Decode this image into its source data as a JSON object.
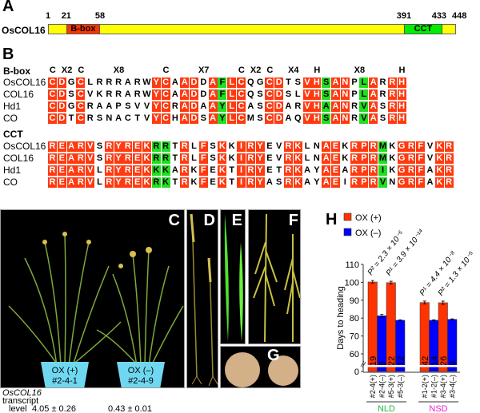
{
  "panel_a": {
    "label": "A",
    "protein": "OsCOL16",
    "length": 448,
    "positions": [
      "1",
      "21",
      "58",
      "391",
      "433",
      "448"
    ],
    "domains": [
      {
        "name": "B-box",
        "start": 21,
        "end": 58,
        "color": "#ff3300"
      },
      {
        "name": "CCT",
        "start": 391,
        "end": 433,
        "color": "#00ee00"
      }
    ],
    "bar_color": "#ffff00"
  },
  "panel_b": {
    "label": "B",
    "bbox": {
      "title": "B-box",
      "header": [
        {
          "text": "C",
          "col": 1
        },
        {
          "text": "X2",
          "col": 2.5
        },
        {
          "text": "C",
          "col": 4
        },
        {
          "text": "X8",
          "col": 8
        },
        {
          "text": "C",
          "col": 13
        },
        {
          "text": "X7",
          "col": 17
        },
        {
          "text": "C",
          "col": 21
        },
        {
          "text": "X2",
          "col": 22.5
        },
        {
          "text": "C",
          "col": 24
        },
        {
          "text": "X4",
          "col": 26.5
        },
        {
          "text": "H",
          "col": 29
        },
        {
          "text": "X8",
          "col": 33.5
        },
        {
          "text": "H",
          "col": 38
        }
      ],
      "pattern": "rrnrnnnnnnnrrnrrnrgrrnnrrnnrrgrrngrnrr",
      "rows": [
        {
          "name": "OsCOL16",
          "seq": "CDGCLRRRARWYCAADDAFLCQGCDTSVHSANPLARRH"
        },
        {
          "name": "COL16",
          "seq": "CDSCVKRRARWYCAADDAFLCQSCDSLVHSANPLARRH"
        },
        {
          "name": "Hd1",
          "seq": "CDGCRAAPSVVYCRADAAYLCASCDARVHAANRVASRH"
        },
        {
          "name": "CO",
          "seq": "CDTCRSNACTVYCHADSAYLCMSCDAQVHSANRVASRH"
        }
      ]
    },
    "cct": {
      "title": "CCT",
      "pattern": "rrrrrnrrrrrggnrnrnrnrrrnnrrnnrrnrrrgnrrrnrr",
      "rows": [
        {
          "name": "OsCOL16",
          "seq": "REARVSRYREKRRTRLFSKKIRYEVRKLNAEKRPRMKGRFVKR"
        },
        {
          "name": "COL16",
          "seq": "REARVSRYREKRRTRLFSKKIRYEVRKLNAEKRPRMKGRFVKR"
        },
        {
          "name": "Hd1",
          "seq": "REARVLRYREKKKARKFEKTIRYETRKAYAEARPRIKGRFAKR"
        },
        {
          "name": "CO",
          "seq": "REARVLRYREKRKTRKFEKTIRYASRKAYAEIRPRVNGRFAKR"
        }
      ]
    }
  },
  "photos": {
    "labels": [
      "C",
      "D",
      "E",
      "F",
      "G"
    ],
    "pots": [
      {
        "line1": "OX (+)",
        "line2": "#2-4-1"
      },
      {
        "line1": "OX (–)",
        "line2": "#2-4-9"
      }
    ],
    "transcript": {
      "gene": "OsCOL16",
      "word1": "transcript",
      "word2": "level",
      "values": [
        "4.05 ± 0.26",
        "0.43 ± 0.01"
      ]
    }
  },
  "chart_data": {
    "type": "bar",
    "panel_label": "H",
    "ylabel": "Days to heading",
    "ylim": [
      0,
      110
    ],
    "axis_break": [
      0,
      60
    ],
    "yticks": [
      "0",
      "60",
      "70",
      "80",
      "90",
      "100",
      "110"
    ],
    "legend": [
      {
        "name": "OX (+)",
        "color": "#ff3300"
      },
      {
        "name": "OX (–)",
        "color": "#0000ff"
      }
    ],
    "legend_position": "top-left",
    "categories": [
      "#2-4(+)",
      "#2-4(–)",
      "#5-3(+)",
      "#5-3(–)",
      "#1-2(+)",
      "#1-2(–)",
      "#3-4(+)",
      "#3-4(–)"
    ],
    "values": [
      100.2,
      81.3,
      99.8,
      78.8,
      88.7,
      78.8,
      88.6,
      79.3
    ],
    "errors": [
      0.8,
      0.8,
      0.8,
      0.3,
      0.8,
      0.3,
      0.9,
      0.3
    ],
    "n": [
      "19",
      "8",
      "22",
      "12",
      "42",
      "14",
      "26",
      "9"
    ],
    "series_of_bar": [
      "OX (+)",
      "OX (–)",
      "OX (+)",
      "OX (–)",
      "OX (+)",
      "OX (–)",
      "OX (+)",
      "OX (–)"
    ],
    "groups": [
      {
        "name": "NLD",
        "color": "#22bb44",
        "bars": [
          0,
          1,
          2,
          3
        ]
      },
      {
        "name": "NSD",
        "color": "#ee22cc",
        "bars": [
          4,
          5,
          6,
          7
        ]
      }
    ],
    "annotations": [
      {
        "text": "P² = 2.3 × 10⁻⁵",
        "bar": 0
      },
      {
        "text": "P¹ = 3.9 × 10⁻¹⁴",
        "bar": 2
      },
      {
        "text": "P¹ = 4.4 × 10⁻⁸",
        "bar": 4
      },
      {
        "text": "P² = 1.3 × 10⁻⁵",
        "bar": 6
      }
    ]
  }
}
